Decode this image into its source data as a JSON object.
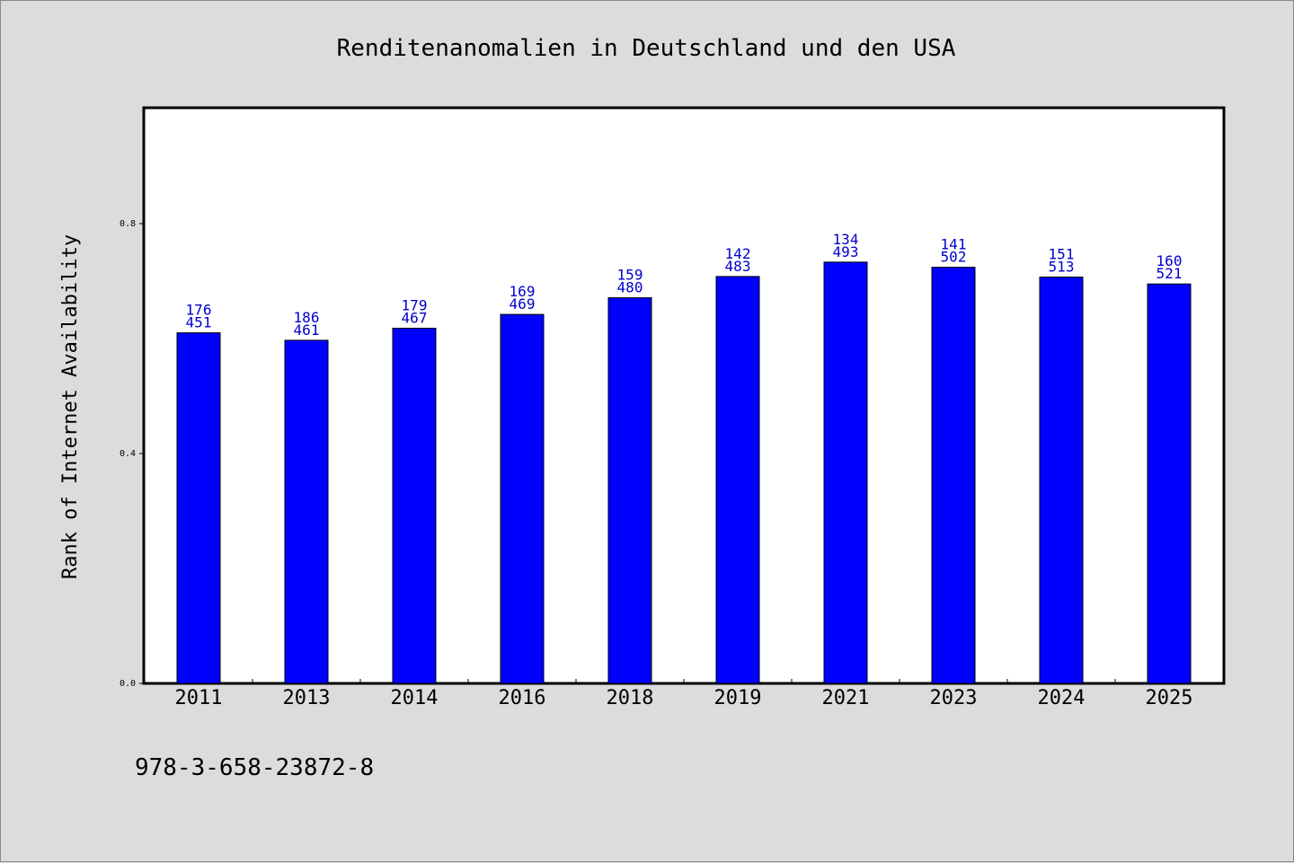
{
  "chart_data": {
    "type": "bar",
    "title": "Renditenanomalien in Deutschland und den USA",
    "xlabel": "",
    "ylabel": "Rank of Internet Availability",
    "categories": [
      "2011",
      "2013",
      "2014",
      "2016",
      "2018",
      "2019",
      "2021",
      "2023",
      "2024",
      "2025"
    ],
    "values": [
      0.61,
      0.597,
      0.618,
      0.642,
      0.671,
      0.708,
      0.733,
      0.724,
      0.707,
      0.695
    ],
    "bar_labels_top": [
      "176",
      "186",
      "179",
      "169",
      "159",
      "142",
      "134",
      "141",
      "151",
      "160"
    ],
    "bar_labels_bottom": [
      "451",
      "461",
      "467",
      "469",
      "480",
      "483",
      "493",
      "502",
      "513",
      "521"
    ],
    "yticks": [
      0.0,
      0.4,
      0.8
    ],
    "ytick_labels": [
      "0.0",
      "0.4",
      "0.8"
    ],
    "ylim": [
      0,
      1.0
    ],
    "grid": false,
    "legend": "none",
    "bar_color": "#0000ff",
    "label_color": "#0000cc"
  },
  "footer": {
    "isbn": "978-3-658-23872-8"
  },
  "colors": {
    "background": "#dcdcdc",
    "plot_background": "#ffffff"
  }
}
